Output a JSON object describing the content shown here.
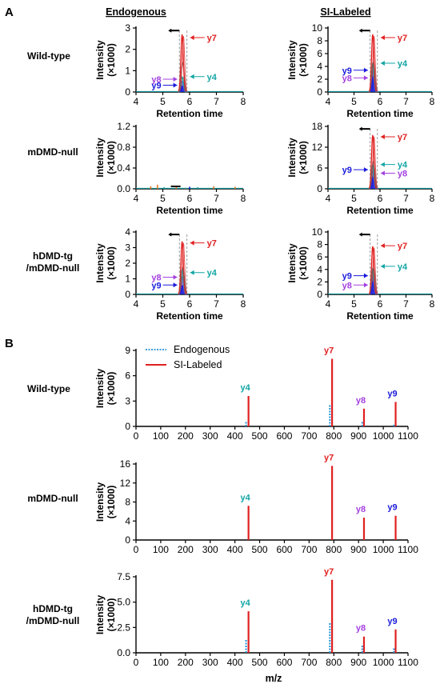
{
  "panel_a": {
    "letter": "A",
    "col_headers": [
      "Endogenous",
      "SI-Labeled"
    ],
    "row_labels": [
      [
        "Wild-type"
      ],
      [
        "mDMD-null"
      ],
      [
        "hDMD-tg",
        "/mDMD-null"
      ]
    ]
  },
  "panel_b": {
    "letter": "B",
    "row_labels": [
      [
        "Wild-type"
      ],
      [
        "mDMD-null"
      ],
      [
        "hDMD-tg",
        "/mDMD-null"
      ]
    ],
    "xlabel_bottom": "m/z"
  },
  "colors": {
    "y7": "#e02020",
    "y4": "#13a5a5",
    "y8": "#a340e0",
    "y9": "#1a1adc",
    "endogenous": "#1f8fd6",
    "labeled": "#e02020",
    "grey_trace": "#808080"
  },
  "chart_data": [
    {
      "id": "a_wt_endo",
      "type": "line",
      "ylabel": "Intensity",
      "yunit": "(×1000)",
      "xlabel": "Retention time",
      "xlim": [
        4,
        8
      ],
      "x_ticks": [
        "4",
        "5",
        "6",
        "7",
        "8"
      ],
      "ylim": [
        0,
        3
      ],
      "y_ticks": [
        "0",
        "1",
        "2",
        "3"
      ],
      "peak_x": 5.72,
      "series": [
        {
          "name": "y7",
          "peak": 2.7
        },
        {
          "name": "y4",
          "peak": 0.7
        },
        {
          "name": "y8",
          "peak": 0.5
        },
        {
          "name": "y9",
          "peak": 0.3
        }
      ],
      "annotations": [
        {
          "label": "y7",
          "level": 2.55,
          "side": "right"
        },
        {
          "label": "y4",
          "level": 0.72,
          "side": "right"
        },
        {
          "label": "y8",
          "level": 0.6,
          "side": "left"
        },
        {
          "label": "y9",
          "level": 0.32,
          "side": "left"
        }
      ]
    },
    {
      "id": "a_wt_si",
      "type": "line",
      "ylabel": "Intensity",
      "yunit": "(×1000)",
      "xlabel": "Retention time",
      "xlim": [
        4,
        8
      ],
      "x_ticks": [
        "4",
        "5",
        "6",
        "7",
        "8"
      ],
      "ylim": [
        0,
        10
      ],
      "y_ticks": [
        "0",
        "2",
        "4",
        "6",
        "8",
        "10"
      ],
      "peak_x": 5.72,
      "series": [
        {
          "name": "y7",
          "peak": 9.0
        },
        {
          "name": "y4",
          "peak": 4.5
        },
        {
          "name": "y8",
          "peak": 3.2
        },
        {
          "name": "y9",
          "peak": 2.5
        }
      ],
      "annotations": [
        {
          "label": "y7",
          "level": 8.5,
          "side": "right"
        },
        {
          "label": "y4",
          "level": 4.5,
          "side": "right"
        },
        {
          "label": "y9",
          "level": 3.4,
          "side": "left"
        },
        {
          "label": "y8",
          "level": 2.2,
          "side": "left"
        }
      ]
    },
    {
      "id": "a_null_endo",
      "type": "line",
      "ylabel": "Intensity",
      "yunit": "(×1000)",
      "xlabel": "Retention time",
      "xlim": [
        4,
        8
      ],
      "x_ticks": [
        "4",
        "5",
        "6",
        "7",
        "8"
      ],
      "ylim": [
        0,
        1.2
      ],
      "y_ticks": [
        "0.0",
        "0.4",
        "0.8",
        "1.2"
      ],
      "peak_x": 5.72,
      "series": [],
      "annotations": []
    },
    {
      "id": "a_null_si",
      "type": "line",
      "ylabel": "Intensity",
      "yunit": "(×1000)",
      "xlabel": "Retention time",
      "xlim": [
        4,
        8
      ],
      "x_ticks": [
        "4",
        "5",
        "6",
        "7",
        "8"
      ],
      "ylim": [
        0,
        18
      ],
      "y_ticks": [
        "0",
        "6",
        "12",
        "18"
      ],
      "peak_x": 5.72,
      "series": [
        {
          "name": "y7",
          "peak": 15.5
        },
        {
          "name": "y4",
          "peak": 7.0
        },
        {
          "name": "y8",
          "peak": 5.0
        },
        {
          "name": "y9",
          "peak": 3.5
        }
      ],
      "annotations": [
        {
          "label": "y7",
          "level": 15,
          "side": "right"
        },
        {
          "label": "y4",
          "level": 7,
          "side": "right"
        },
        {
          "label": "y9",
          "level": 5.5,
          "side": "left"
        },
        {
          "label": "y8",
          "level": 4.5,
          "side": "right"
        }
      ]
    },
    {
      "id": "a_tg_endo",
      "type": "line",
      "ylabel": "Intensity",
      "yunit": "(×1000)",
      "xlabel": "Retention time",
      "xlim": [
        4,
        8
      ],
      "x_ticks": [
        "4",
        "5",
        "6",
        "7",
        "8"
      ],
      "ylim": [
        0,
        4
      ],
      "y_ticks": [
        "0",
        "1",
        "2",
        "3",
        "4"
      ],
      "peak_x": 5.72,
      "series": [
        {
          "name": "y7",
          "peak": 3.4
        },
        {
          "name": "y4",
          "peak": 1.6
        },
        {
          "name": "y8",
          "peak": 1.1
        },
        {
          "name": "y9",
          "peak": 0.6
        }
      ],
      "annotations": [
        {
          "label": "y7",
          "level": 3.3,
          "side": "right"
        },
        {
          "label": "y4",
          "level": 1.4,
          "side": "right"
        },
        {
          "label": "y8",
          "level": 1.1,
          "side": "left"
        },
        {
          "label": "y9",
          "level": 0.6,
          "side": "left"
        }
      ]
    },
    {
      "id": "a_tg_si",
      "type": "line",
      "ylabel": "Intensity",
      "yunit": "(×1000)",
      "xlabel": "Retention time",
      "xlim": [
        4,
        8
      ],
      "x_ticks": [
        "4",
        "5",
        "6",
        "7",
        "8"
      ],
      "ylim": [
        0,
        10
      ],
      "y_ticks": [
        "0",
        "2",
        "4",
        "6",
        "8",
        "10"
      ],
      "peak_x": 5.72,
      "series": [
        {
          "name": "y7",
          "peak": 7.7
        },
        {
          "name": "y4",
          "peak": 4.2
        },
        {
          "name": "y8",
          "peak": 2.8
        },
        {
          "name": "y9",
          "peak": 2.2
        }
      ],
      "annotations": [
        {
          "label": "y7",
          "level": 7.8,
          "side": "right"
        },
        {
          "label": "y4",
          "level": 4.5,
          "side": "right"
        },
        {
          "label": "y9",
          "level": 3.0,
          "side": "left"
        },
        {
          "label": "y8",
          "level": 1.5,
          "side": "left"
        }
      ]
    },
    {
      "id": "b_wt",
      "type": "bar",
      "ylabel": "Intensity",
      "yunit": "(×1000)",
      "xlim": [
        0,
        1100
      ],
      "x_ticks": [
        "0",
        "100",
        "200",
        "300",
        "400",
        "500",
        "600",
        "700",
        "800",
        "900",
        "1000",
        "1100"
      ],
      "ylim": [
        0,
        9
      ],
      "y_ticks": [
        "0",
        "3",
        "6",
        "9"
      ],
      "legend": [
        "Endogenous",
        "SI-Labeled"
      ],
      "endogenous": [
        {
          "mz": 445,
          "value": 0.6
        },
        {
          "mz": 784,
          "value": 2.6
        },
        {
          "mz": 915,
          "value": 0.6
        },
        {
          "mz": 1043,
          "value": 0.3
        }
      ],
      "labeled": [
        {
          "mz": 455,
          "value": 3.6,
          "label": "y4"
        },
        {
          "mz": 793,
          "value": 8.0,
          "label": "y7"
        },
        {
          "mz": 922,
          "value": 2.1,
          "label": "y8"
        },
        {
          "mz": 1050,
          "value": 2.9,
          "label": "y9"
        }
      ]
    },
    {
      "id": "b_null",
      "type": "bar",
      "ylabel": "Intensity",
      "yunit": "(×1000)",
      "xlim": [
        0,
        1100
      ],
      "x_ticks": [
        "0",
        "100",
        "200",
        "300",
        "400",
        "500",
        "600",
        "700",
        "800",
        "900",
        "1000",
        "1100"
      ],
      "ylim": [
        0,
        16
      ],
      "y_ticks": [
        "0",
        "4",
        "8",
        "12",
        "16"
      ],
      "endogenous": [],
      "labeled": [
        {
          "mz": 455,
          "value": 7.2,
          "label": "y4"
        },
        {
          "mz": 793,
          "value": 15.6,
          "label": "y7"
        },
        {
          "mz": 922,
          "value": 4.7,
          "label": "y8"
        },
        {
          "mz": 1050,
          "value": 5.1,
          "label": "y9"
        }
      ]
    },
    {
      "id": "b_tg",
      "type": "bar",
      "ylabel": "Intensity",
      "yunit": "(×1000)",
      "xlim": [
        0,
        1100
      ],
      "x_ticks": [
        "0",
        "100",
        "200",
        "300",
        "400",
        "500",
        "600",
        "700",
        "800",
        "900",
        "1000",
        "1100"
      ],
      "ylim": [
        0,
        7.5
      ],
      "y_ticks": [
        "0.0",
        "2.5",
        "5.0",
        "7.5"
      ],
      "endogenous": [
        {
          "mz": 445,
          "value": 1.3
        },
        {
          "mz": 784,
          "value": 3.0
        },
        {
          "mz": 915,
          "value": 0.7
        },
        {
          "mz": 1043,
          "value": 0.5
        }
      ],
      "labeled": [
        {
          "mz": 455,
          "value": 4.1,
          "label": "y4"
        },
        {
          "mz": 793,
          "value": 7.2,
          "label": "y7"
        },
        {
          "mz": 922,
          "value": 1.6,
          "label": "y8"
        },
        {
          "mz": 1050,
          "value": 2.3,
          "label": "y9"
        }
      ]
    }
  ]
}
